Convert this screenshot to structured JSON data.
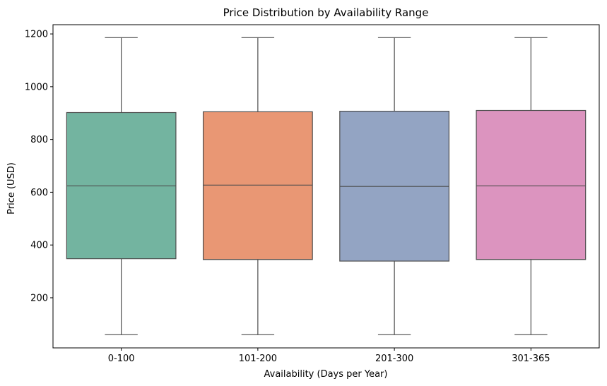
{
  "chart_data": {
    "type": "boxplot",
    "title": "Price Distribution by Availability Range",
    "xlabel": "Availability (Days per Year)",
    "ylabel": "Price (USD)",
    "categories": [
      "0-100",
      "101-200",
      "201-300",
      "301-365"
    ],
    "ylim": [
      10,
      1235
    ],
    "yticks": [
      200,
      400,
      600,
      800,
      1000,
      1200
    ],
    "grid": false,
    "legend": "none",
    "boxes": [
      {
        "category": "0-100",
        "min": 60,
        "q1": 348,
        "median": 624,
        "q3": 902,
        "max": 1186,
        "color": "#73b4a0"
      },
      {
        "category": "101-200",
        "min": 60,
        "q1": 345,
        "median": 627,
        "q3": 905,
        "max": 1186,
        "color": "#e99774"
      },
      {
        "category": "201-300",
        "min": 60,
        "q1": 339,
        "median": 622,
        "q3": 907,
        "max": 1186,
        "color": "#93a4c3"
      },
      {
        "category": "301-365",
        "min": 60,
        "q1": 345,
        "median": 624,
        "q3": 910,
        "max": 1186,
        "color": "#dc94bf"
      }
    ],
    "line_color": "#4d4d4d"
  }
}
